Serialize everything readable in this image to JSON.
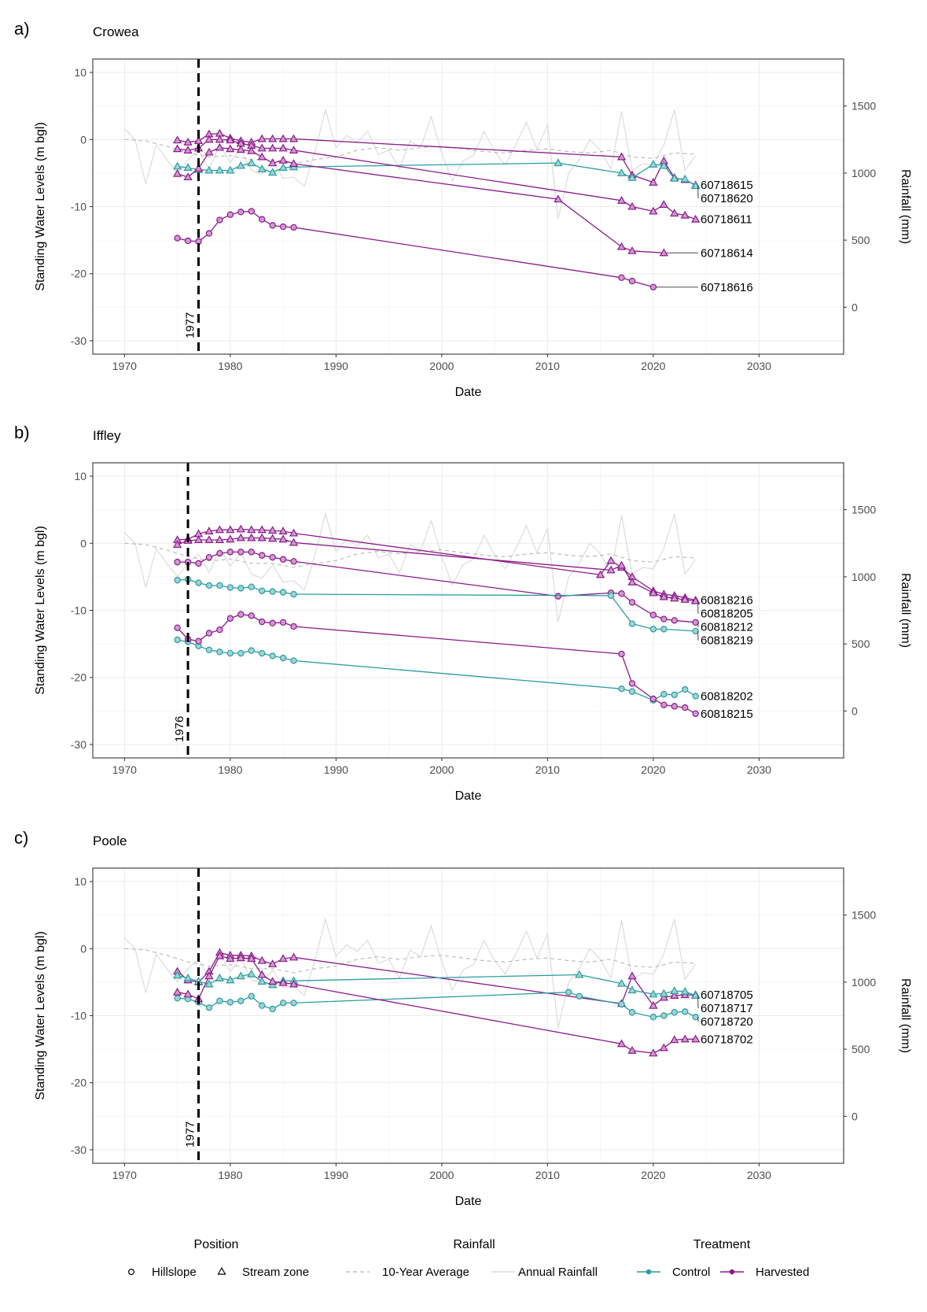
{
  "figure": {
    "legend": {
      "position_title": "Position",
      "rainfall_title": "Rainfall",
      "treatment_title": "Treatment",
      "items": {
        "hillslope": "Hillslope",
        "stream_zone": "Stream zone",
        "ten_year_average": "10-Year Average",
        "annual_rainfall": "Annual Rainfall",
        "control": "Control",
        "harvested": "Harvested"
      }
    },
    "colors": {
      "control": "#2a9d9f",
      "harvested": "#8b1a89",
      "control_fill": "#9fd3d4",
      "harvested_fill": "#d09ad0",
      "annual_rain": "#dcdcdc",
      "avg_rain": "#b8b8b8",
      "grid": "#ebebeb",
      "axis": "#333333"
    }
  },
  "chart_data": [
    {
      "type": "line",
      "panel": "a)",
      "title": "Crowea",
      "xlabel": "Date",
      "ylabel": "Standing Water Levels (m bgl)",
      "y2label": "Rainfall (mm)",
      "xlim": [
        1967,
        2038
      ],
      "ylim": [
        -32,
        12
      ],
      "y2lim": [
        -350,
        1850
      ],
      "xticks": [
        1970,
        1980,
        1990,
        2000,
        2010,
        2020,
        2030
      ],
      "yticks": [
        10,
        0,
        -10,
        -20,
        -30
      ],
      "y2ticks": [
        1500,
        1000,
        500,
        0
      ],
      "vline": {
        "x": 1977,
        "label": "1977"
      },
      "series": [
        {
          "name": "60718615",
          "treatment": "Harvested",
          "position": "Stream zone",
          "x": [
            1975,
            1976,
            1977,
            1978,
            1979,
            1980,
            1981,
            1982,
            1983,
            1984,
            1985,
            1986,
            2017,
            2018,
            2020,
            2021,
            2022,
            2023,
            2024
          ],
          "y": [
            -0.1,
            -0.4,
            -0.2,
            0.8,
            0.9,
            0.2,
            -0.2,
            -0.4,
            0.1,
            0.1,
            0.1,
            0.1,
            -2.6,
            -5.3,
            -6.4,
            -3.2,
            -5.7,
            -6.0,
            -6.8
          ]
        },
        {
          "name": "60718620",
          "treatment": "Control",
          "position": "Stream zone",
          "x": [
            1975,
            1976,
            1977,
            1978,
            1979,
            1980,
            1981,
            1982,
            1983,
            1984,
            1985,
            1986,
            2011,
            2017,
            2018,
            2020,
            2021,
            2022,
            2023,
            2024
          ],
          "y": [
            -4.0,
            -4.2,
            -4.5,
            -4.6,
            -4.6,
            -4.6,
            -3.9,
            -3.5,
            -4.4,
            -4.9,
            -4.2,
            -4.1,
            -3.5,
            -5.0,
            -5.7,
            -3.7,
            -3.9,
            -5.8,
            -5.9,
            -6.9
          ]
        },
        {
          "name": "60718611",
          "treatment": "Harvested",
          "position": "Stream zone",
          "x": [
            1975,
            1976,
            1977,
            1978,
            1979,
            1980,
            1981,
            1982,
            1983,
            1984,
            1985,
            1986,
            2017,
            2018,
            2020,
            2021,
            2022,
            2023,
            2024
          ],
          "y": [
            -1.4,
            -1.6,
            -1.3,
            0.0,
            0.0,
            -0.1,
            -0.6,
            -0.9,
            -1.3,
            -1.3,
            -1.3,
            -1.6,
            -9.1,
            -10.0,
            -10.7,
            -9.7,
            -11.0,
            -11.3,
            -11.9
          ]
        },
        {
          "name": "60718614",
          "treatment": "Harvested",
          "position": "Stream zone",
          "x": [
            1975,
            1976,
            1977,
            1978,
            1979,
            1980,
            1981,
            1982,
            1983,
            1984,
            1985,
            1986,
            2011,
            2017,
            2018,
            2021
          ],
          "y": [
            -5.1,
            -5.6,
            -4.3,
            -1.9,
            -1.2,
            -1.4,
            -1.5,
            -1.7,
            -2.6,
            -3.5,
            -3.1,
            -3.6,
            -8.9,
            -16.0,
            -16.6,
            -16.9
          ]
        },
        {
          "name": "60718616",
          "treatment": "Harvested",
          "position": "Hillslope",
          "x": [
            1975,
            1976,
            1977,
            1978,
            1979,
            1980,
            1981,
            1982,
            1983,
            1984,
            1985,
            1986,
            2017,
            2018,
            2020
          ],
          "y": [
            -14.7,
            -15.1,
            -15.2,
            -14.0,
            -12.0,
            -11.2,
            -10.8,
            -10.7,
            -11.9,
            -12.8,
            -13.0,
            -13.1,
            -20.6,
            -21.1,
            -22.0
          ]
        }
      ]
    },
    {
      "type": "line",
      "panel": "b)",
      "title": "Iffley",
      "xlabel": "Date",
      "ylabel": "Standing Water Levels (m bgl)",
      "y2label": "Rainfall (mm)",
      "xlim": [
        1967,
        2038
      ],
      "ylim": [
        -32,
        12
      ],
      "y2lim": [
        -350,
        1850
      ],
      "xticks": [
        1970,
        1980,
        1990,
        2000,
        2010,
        2020,
        2030
      ],
      "yticks": [
        10,
        0,
        -10,
        -20,
        -30
      ],
      "y2ticks": [
        1500,
        1000,
        500,
        0
      ],
      "vline": {
        "x": 1976,
        "label": "1976"
      },
      "series": [
        {
          "name": "60818216",
          "treatment": "Harvested",
          "position": "Stream zone",
          "x": [
            1975,
            1976,
            1977,
            1978,
            1979,
            1980,
            1981,
            1982,
            1983,
            1984,
            1985,
            1986,
            2015,
            2016,
            2017,
            2018,
            2020,
            2021,
            2022,
            2023,
            2024
          ],
          "y": [
            0.5,
            0.6,
            1.4,
            1.8,
            2.0,
            2.0,
            2.1,
            2.0,
            2.0,
            1.9,
            1.8,
            1.5,
            -4.7,
            -2.6,
            -3.6,
            -5.0,
            -7.1,
            -7.6,
            -7.8,
            -8.1,
            -8.5
          ]
        },
        {
          "name": "60818205",
          "treatment": "Harvested",
          "position": "Stream zone",
          "x": [
            1975,
            1976,
            1977,
            1978,
            1979,
            1980,
            1981,
            1982,
            1983,
            1984,
            1985,
            1986,
            2016,
            2017,
            2018,
            2020,
            2021,
            2022,
            2023,
            2024
          ],
          "y": [
            -0.2,
            0.4,
            0.5,
            0.5,
            0.5,
            0.6,
            0.8,
            0.8,
            0.8,
            0.7,
            0.6,
            0.1,
            -4.0,
            -3.3,
            -5.8,
            -7.4,
            -8.0,
            -8.2,
            -8.4,
            -8.6
          ]
        },
        {
          "name": "60818212",
          "treatment": "Harvested",
          "position": "Hillslope",
          "x": [
            1975,
            1976,
            1977,
            1978,
            1979,
            1980,
            1981,
            1982,
            1983,
            1984,
            1985,
            1986,
            2011,
            2016,
            2017,
            2018,
            2020,
            2021,
            2022,
            2024
          ],
          "y": [
            -2.8,
            -2.8,
            -3.0,
            -2.1,
            -1.5,
            -1.3,
            -1.3,
            -1.3,
            -1.8,
            -2.1,
            -2.4,
            -2.7,
            -7.9,
            -7.4,
            -7.5,
            -8.8,
            -10.7,
            -11.3,
            -11.5,
            -11.8
          ]
        },
        {
          "name": "60818219",
          "treatment": "Control",
          "position": "Hillslope",
          "x": [
            1975,
            1976,
            1977,
            1978,
            1979,
            1980,
            1981,
            1982,
            1983,
            1984,
            1985,
            1986,
            2016,
            2018,
            2020,
            2021,
            2024
          ],
          "y": [
            -5.5,
            -5.4,
            -5.9,
            -6.3,
            -6.3,
            -6.6,
            -6.7,
            -6.5,
            -7.1,
            -7.2,
            -7.3,
            -7.6,
            -7.8,
            -12.0,
            -12.8,
            -12.8,
            -13.1
          ]
        },
        {
          "name": "60818202",
          "treatment": "Control",
          "position": "Hillslope",
          "x": [
            1975,
            1976,
            1977,
            1978,
            1979,
            1980,
            1981,
            1982,
            1983,
            1984,
            1985,
            1986,
            2017,
            2018,
            2020,
            2021,
            2022,
            2023,
            2024
          ],
          "y": [
            -14.4,
            -14.7,
            -15.3,
            -15.9,
            -16.2,
            -16.4,
            -16.4,
            -16.0,
            -16.4,
            -16.8,
            -17.1,
            -17.5,
            -21.7,
            -22.1,
            -23.4,
            -22.5,
            -22.6,
            -21.8,
            -22.8
          ]
        },
        {
          "name": "60818215",
          "treatment": "Harvested",
          "position": "Hillslope",
          "x": [
            1975,
            1976,
            1977,
            1978,
            1979,
            1980,
            1981,
            1982,
            1983,
            1984,
            1985,
            1986,
            2017,
            2018,
            2020,
            2021,
            2022,
            2023,
            2024
          ],
          "y": [
            -12.6,
            -14.3,
            -14.6,
            -13.4,
            -12.9,
            -11.2,
            -10.6,
            -10.8,
            -11.7,
            -11.9,
            -11.8,
            -12.4,
            -16.5,
            -20.9,
            -23.2,
            -24.1,
            -24.3,
            -24.5,
            -25.4
          ]
        }
      ]
    },
    {
      "type": "line",
      "panel": "c)",
      "title": "Poole",
      "xlabel": "Date",
      "ylabel": "Standing Water Levels (m bgl)",
      "y2label": "Rainfall (mm)",
      "xlim": [
        1967,
        2038
      ],
      "ylim": [
        -32,
        12
      ],
      "y2lim": [
        -350,
        1850
      ],
      "xticks": [
        1970,
        1980,
        1990,
        2000,
        2010,
        2020,
        2030
      ],
      "yticks": [
        10,
        0,
        -10,
        -20,
        -30
      ],
      "y2ticks": [
        1500,
        1000,
        500,
        0
      ],
      "vline": {
        "x": 1977,
        "label": "1977"
      },
      "series": [
        {
          "name": "60718705",
          "treatment": "Harvested",
          "position": "Stream zone",
          "x": [
            1975,
            1976,
            1977,
            1978,
            1979,
            1980,
            1981,
            1982,
            1983,
            1984,
            1985,
            1986,
            2017,
            2018,
            2020,
            2021,
            2022,
            2023,
            2024
          ],
          "y": [
            -3.4,
            -4.7,
            -5.0,
            -3.4,
            -0.6,
            -1.0,
            -1.0,
            -1.1,
            -1.8,
            -2.3,
            -1.5,
            -1.3,
            -8.2,
            -4.1,
            -8.5,
            -7.3,
            -7.0,
            -6.9,
            -6.9
          ]
        },
        {
          "name": "60718717",
          "treatment": "Control",
          "position": "Stream zone",
          "x": [
            1975,
            1976,
            1977,
            1978,
            1979,
            1980,
            1981,
            1982,
            1983,
            1984,
            1985,
            1986,
            2013,
            2017,
            2018,
            2020,
            2021,
            2022,
            2023,
            2024
          ],
          "y": [
            -4.0,
            -4.4,
            -4.9,
            -5.3,
            -4.4,
            -4.7,
            -4.1,
            -3.8,
            -4.9,
            -5.4,
            -4.8,
            -4.8,
            -3.9,
            -5.2,
            -6.2,
            -6.8,
            -6.7,
            -6.3,
            -6.4,
            -7.0
          ]
        },
        {
          "name": "60718720",
          "treatment": "Control",
          "position": "Hillslope",
          "x": [
            1975,
            1976,
            1977,
            1978,
            1979,
            1980,
            1981,
            1982,
            1983,
            1984,
            1985,
            1986,
            2012,
            2013,
            2017,
            2018,
            2020,
            2021,
            2022,
            2023,
            2024
          ],
          "y": [
            -7.4,
            -7.5,
            -8.0,
            -8.8,
            -7.8,
            -8.0,
            -7.8,
            -7.1,
            -8.5,
            -9.0,
            -8.1,
            -8.1,
            -6.5,
            -7.1,
            -8.3,
            -9.5,
            -10.2,
            -10.0,
            -9.5,
            -9.4,
            -10.2
          ]
        },
        {
          "name": "60718702",
          "treatment": "Harvested",
          "position": "Stream zone",
          "x": [
            1975,
            1976,
            1977,
            1978,
            1979,
            1980,
            1981,
            1982,
            1983,
            1984,
            1985,
            1986,
            2017,
            2018,
            2020,
            2021,
            2022,
            2023,
            2024
          ],
          "y": [
            -6.5,
            -6.8,
            -7.5,
            -4.1,
            -1.1,
            -1.5,
            -1.4,
            -1.5,
            -3.9,
            -4.9,
            -5.1,
            -5.3,
            -14.2,
            -15.2,
            -15.6,
            -14.8,
            -13.6,
            -13.5,
            -13.5
          ]
        }
      ]
    }
  ],
  "rainfall": {
    "years": [
      1970,
      1971,
      1972,
      1973,
      1974,
      1975,
      1976,
      1977,
      1978,
      1979,
      1980,
      1981,
      1982,
      1983,
      1984,
      1985,
      1986,
      1987,
      1988,
      1989,
      1990,
      1991,
      1992,
      1993,
      1994,
      1995,
      1996,
      1997,
      1998,
      1999,
      2000,
      2001,
      2002,
      2003,
      2004,
      2005,
      2006,
      2007,
      2008,
      2009,
      2010,
      2011,
      2012,
      2013,
      2014,
      2015,
      2016,
      2017,
      2018,
      2019,
      2020,
      2021,
      2022,
      2023,
      2024
    ],
    "annual": [
      1330,
      1250,
      920,
      1210,
      1100,
      1000,
      1100,
      1170,
      1030,
      1210,
      1080,
      1180,
      1020,
      990,
      1090,
      960,
      970,
      900,
      1160,
      1470,
      1190,
      1280,
      1230,
      1310,
      1140,
      1170,
      1030,
      1240,
      1190,
      1420,
      1150,
      940,
      1090,
      1130,
      1310,
      1160,
      1060,
      1210,
      1380,
      1180,
      1360,
      660,
      1000,
      1100,
      1250,
      1170,
      1030,
      1460,
      1020,
      1070,
      1060,
      1210,
      1470,
      1020,
      1130
    ],
    "avg_years": [
      1970,
      1972,
      1974,
      1976,
      1978,
      1980,
      1982,
      1984,
      1986,
      1988,
      1990,
      1992,
      1994,
      1996,
      1998,
      2000,
      2002,
      2004,
      2006,
      2008,
      2010,
      2012,
      2014,
      2016,
      2018,
      2020,
      2022,
      2024
    ],
    "ten_year_average": [
      1250,
      1240,
      1200,
      1150,
      1120,
      1130,
      1100,
      1100,
      1070,
      1100,
      1120,
      1170,
      1190,
      1170,
      1190,
      1200,
      1180,
      1160,
      1150,
      1170,
      1180,
      1160,
      1150,
      1170,
      1120,
      1110,
      1150,
      1140
    ]
  }
}
